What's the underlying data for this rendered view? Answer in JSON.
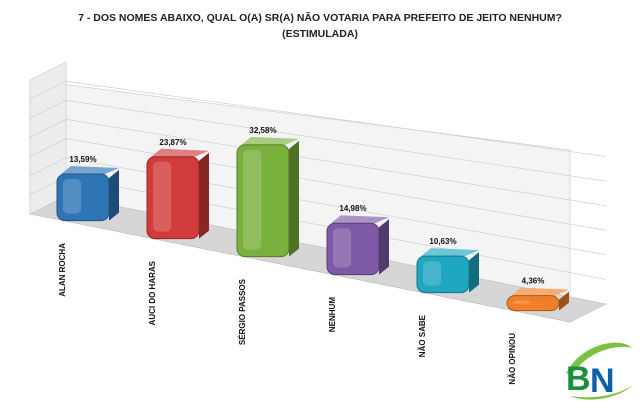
{
  "chart_data": {
    "type": "bar",
    "title": "7 - DOS NOMES ABAIXO, QUAL O(A) SR(A) NÃO VOTARIA PARA PREFEITO DE JEITO NENHUM?",
    "subtitle": "(ESTIMULADA)",
    "categories": [
      "ALAN ROCHA",
      "AUCI DO HARAS",
      "SÉRGIO PASSOS",
      "NENHUM",
      "NÃO SABE",
      "NÃO OPINOU"
    ],
    "values": [
      13.59,
      23.87,
      32.58,
      14.98,
      10.63,
      4.36
    ],
    "value_labels": [
      "13,59%",
      "23,87%",
      "32,58%",
      "14,98%",
      "10,63%",
      "4,36%"
    ],
    "colors": [
      "#2e75b6",
      "#d13b3b",
      "#7ab03c",
      "#7e5aa6",
      "#1fa7c2",
      "#f07f2a"
    ],
    "grid": true,
    "legend": "none"
  },
  "logo": {
    "text": "BN",
    "colors": [
      "#1a8f3c",
      "#0d5fa8"
    ]
  }
}
